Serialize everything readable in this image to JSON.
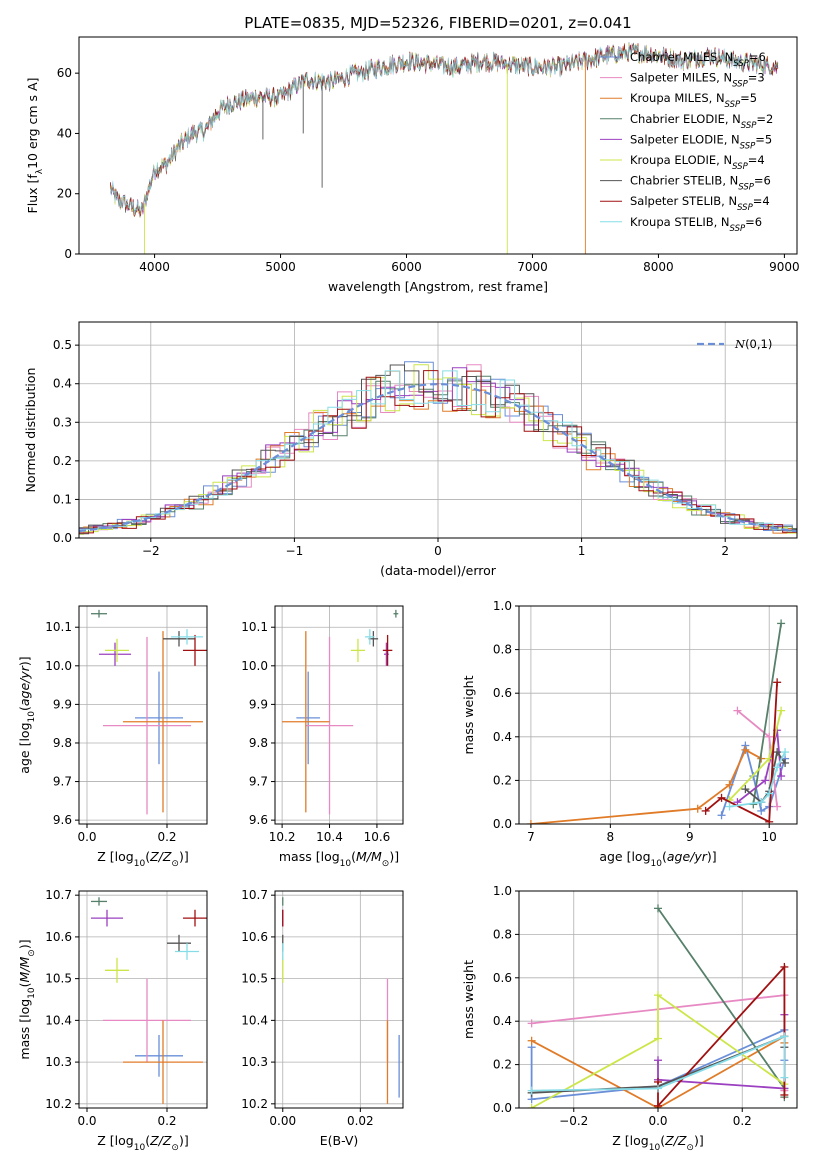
{
  "figure_title": "PLATE=0835, MJD=52326, FIBERID=0201, z=0.041",
  "colors": [
    "#6a8fd8",
    "#e78ac3",
    "#e07b28",
    "#56806a",
    "#9b40c0",
    "#cce64a",
    "#555555",
    "#a01010",
    "#86dde8"
  ],
  "legend_main": [
    "Chabrier MILES, N_SSP=6",
    "Salpeter MILES, N_SSP=3",
    "Kroupa MILES, N_SSP=5",
    "Chabrier ELODIE, N_SSP=2",
    "Salpeter ELODIE, N_SSP=5",
    "Kroupa ELODIE, N_SSP=4",
    "Chabrier STELIB, N_SSP=6",
    "Salpeter STELIB, N_SSP=4",
    "Kroupa STELIB, N_SSP=6"
  ],
  "legend_labels": [
    {
      "pre": "Chabrier MILES, N",
      "post": "=6"
    },
    {
      "pre": "Salpeter MILES, N",
      "post": "=3"
    },
    {
      "pre": "Kroupa MILES, N",
      "post": "=5"
    },
    {
      "pre": "Chabrier ELODIE, N",
      "post": "=2"
    },
    {
      "pre": "Salpeter ELODIE, N",
      "post": "=5"
    },
    {
      "pre": "Kroupa ELODIE, N",
      "post": "=4"
    },
    {
      "pre": "Chabrier STELIB, N",
      "post": "=6"
    },
    {
      "pre": "Salpeter STELIB, N",
      "post": "=4"
    },
    {
      "pre": "Kroupa STELIB, N",
      "post": "=6"
    }
  ],
  "legend_sub": "SSP",
  "legend_residual": "N(0,1)",
  "chart_data": [
    {
      "id": "spectrum",
      "type": "line",
      "xlabel": "wavelength [Angstrom, rest frame]",
      "ylabel": "Flux [f_λ 10^-17 erg cm^-2 s^-1 A^-1]",
      "xlim": [
        3400,
        9100
      ],
      "ylim": [
        0,
        72
      ],
      "xticks": [
        4000,
        5000,
        6000,
        7000,
        8000,
        9000
      ],
      "yticks": [
        0,
        20,
        40,
        60
      ],
      "continuum": {
        "x": [
          3650,
          3700,
          3800,
          3900,
          4000,
          4100,
          4200,
          4300,
          4400,
          4500,
          4600,
          4800,
          5000,
          5200,
          5400,
          5600,
          5800,
          6000,
          6200,
          6400,
          6600,
          6800,
          7000,
          7200,
          7400,
          7600,
          7800,
          8000,
          8200,
          8400,
          8600,
          8800,
          8950
        ],
        "y": [
          22,
          18,
          16,
          14,
          28,
          30,
          36,
          40,
          41,
          47,
          50,
          52,
          52,
          58,
          57,
          60,
          62,
          64,
          63,
          62,
          64,
          63,
          62,
          62,
          64,
          66,
          67,
          66,
          64,
          66,
          64,
          63,
          62
        ]
      },
      "dropouts": [
        {
          "x": 3920,
          "ymin": 0,
          "series": 5
        },
        {
          "x": 5330,
          "ymin": 22,
          "series": 6
        },
        {
          "x": 6800,
          "ymin": 0,
          "series": 5
        },
        {
          "x": 7420,
          "ymin": 0,
          "series": 2
        },
        {
          "x": 4860,
          "ymin": 38,
          "series": 6
        },
        {
          "x": 5180,
          "ymin": 40,
          "series": 6
        }
      ],
      "x_range_data": [
        3650,
        8950
      ]
    },
    {
      "id": "residuals",
      "type": "line",
      "xlabel": "(data-model)/error",
      "ylabel": "Normed distribution",
      "xlim": [
        -2.5,
        2.5
      ],
      "ylim": [
        0,
        0.56
      ],
      "xticks": [
        -2,
        -1,
        0,
        1,
        2
      ],
      "yticks": [
        0.0,
        0.1,
        0.2,
        0.3,
        0.4,
        0.5
      ],
      "gaussian": {
        "mu": 0,
        "sigma": 1,
        "label": "N(0,1)"
      },
      "bin_width": 0.1
    },
    {
      "id": "age_vs_Z",
      "type": "scatter",
      "xlabel": "Z [log10(Z/Z_sun)]",
      "ylabel": "age [log10(age/yr)]",
      "xlim": [
        -0.02,
        0.3
      ],
      "ylim": [
        9.59,
        10.155
      ],
      "xticks": [
        0.0,
        0.2
      ],
      "yticks": [
        9.6,
        9.7,
        9.8,
        9.9,
        10.0,
        10.1
      ],
      "points": [
        {
          "x": 0.18,
          "y": 9.865,
          "xerr": 0.06,
          "yerr": 0.12,
          "series": 0
        },
        {
          "x": 0.15,
          "y": 9.845,
          "xerr": 0.11,
          "yerr": 0.23,
          "series": 1
        },
        {
          "x": 0.19,
          "y": 9.855,
          "xerr": 0.1,
          "yerr": 0.235,
          "series": 2
        },
        {
          "x": 0.03,
          "y": 10.135,
          "xerr": 0.02,
          "yerr": 0.01,
          "series": 3
        },
        {
          "x": 0.07,
          "y": 10.03,
          "xerr": 0.04,
          "yerr": 0.03,
          "series": 4
        },
        {
          "x": 0.075,
          "y": 10.04,
          "xerr": 0.03,
          "yerr": 0.03,
          "series": 5
        },
        {
          "x": 0.23,
          "y": 10.07,
          "xerr": 0.04,
          "yerr": 0.02,
          "series": 6
        },
        {
          "x": 0.27,
          "y": 10.04,
          "xerr": 0.03,
          "yerr": 0.04,
          "series": 7
        },
        {
          "x": 0.25,
          "y": 10.075,
          "xerr": 0.04,
          "yerr": 0.02,
          "series": 8
        }
      ]
    },
    {
      "id": "age_vs_mass",
      "type": "scatter",
      "xlabel": "mass [log10(M/M_sun)]",
      "ylabel": "",
      "xlim": [
        10.17,
        10.71
      ],
      "ylim": [
        9.59,
        10.155
      ],
      "xticks": [
        10.2,
        10.4,
        10.6
      ],
      "yticks": [
        9.6,
        9.7,
        9.8,
        9.9,
        10.0,
        10.1
      ],
      "points": [
        {
          "x": 10.31,
          "y": 9.865,
          "xerr": 0.05,
          "yerr": 0.12,
          "series": 0
        },
        {
          "x": 10.4,
          "y": 9.845,
          "xerr": 0.1,
          "yerr": 0.23,
          "series": 1
        },
        {
          "x": 10.3,
          "y": 9.855,
          "xerr": 0.1,
          "yerr": 0.235,
          "series": 2
        },
        {
          "x": 10.68,
          "y": 10.135,
          "xerr": 0.01,
          "yerr": 0.01,
          "series": 3
        },
        {
          "x": 10.64,
          "y": 10.03,
          "xerr": 0.01,
          "yerr": 0.03,
          "series": 4
        },
        {
          "x": 10.52,
          "y": 10.04,
          "xerr": 0.03,
          "yerr": 0.03,
          "series": 5
        },
        {
          "x": 10.585,
          "y": 10.07,
          "xerr": 0.02,
          "yerr": 0.02,
          "series": 6
        },
        {
          "x": 10.645,
          "y": 10.04,
          "xerr": 0.02,
          "yerr": 0.04,
          "series": 7
        },
        {
          "x": 10.57,
          "y": 10.075,
          "xerr": 0.02,
          "yerr": 0.02,
          "series": 8
        }
      ]
    },
    {
      "id": "weight_vs_age",
      "type": "line",
      "xlabel": "age [log10(age/yr)]",
      "ylabel": "mass weight",
      "xlim": [
        6.85,
        10.35
      ],
      "ylim": [
        0,
        1.0
      ],
      "xticks": [
        7,
        8,
        9,
        10
      ],
      "yticks": [
        0.0,
        0.2,
        0.4,
        0.6,
        0.8,
        1.0
      ],
      "series": [
        {
          "series": 0,
          "x": [
            9.4,
            9.7,
            9.8,
            9.9,
            10.0,
            10.2
          ],
          "y": [
            0.04,
            0.36,
            0.22,
            0.06,
            0.08,
            0.3
          ]
        },
        {
          "series": 1,
          "x": [
            9.6,
            10.0,
            10.1
          ],
          "y": [
            0.52,
            0.4,
            0.08
          ]
        },
        {
          "series": 2,
          "x": [
            7.0,
            9.1,
            9.5,
            9.7,
            9.9
          ],
          "y": [
            0.0,
            0.07,
            0.18,
            0.34,
            0.3
          ]
        },
        {
          "series": 3,
          "x": [
            9.8,
            10.15
          ],
          "y": [
            0.09,
            0.92
          ]
        },
        {
          "series": 4,
          "x": [
            9.6,
            9.95,
            10.1,
            10.15
          ],
          "y": [
            0.1,
            0.2,
            0.43,
            0.22
          ]
        },
        {
          "series": 5,
          "x": [
            9.5,
            10.0,
            10.15
          ],
          "y": [
            0.11,
            0.3,
            0.52
          ]
        },
        {
          "series": 6,
          "x": [
            9.7,
            9.9,
            10.0,
            10.1,
            10.2
          ],
          "y": [
            0.16,
            0.1,
            0.15,
            0.33,
            0.28
          ]
        },
        {
          "series": 7,
          "x": [
            9.2,
            9.4,
            10.0,
            10.1
          ],
          "y": [
            0.06,
            0.12,
            0.01,
            0.65
          ]
        },
        {
          "series": 8,
          "x": [
            9.5,
            9.9,
            10.0,
            10.1,
            10.2
          ],
          "y": [
            0.08,
            0.1,
            0.14,
            0.26,
            0.33
          ]
        }
      ]
    },
    {
      "id": "mass_vs_Z",
      "type": "scatter",
      "xlabel": "Z [log10(Z/Z_sun)]",
      "ylabel": "mass [log10(M/M_sun)]",
      "xlim": [
        -0.02,
        0.3
      ],
      "ylim": [
        10.19,
        10.71
      ],
      "xticks": [
        0.0,
        0.2
      ],
      "yticks": [
        10.2,
        10.3,
        10.4,
        10.5,
        10.6,
        10.7
      ],
      "points": [
        {
          "x": 0.18,
          "y": 10.315,
          "xerr": 0.06,
          "yerr": 0.05,
          "series": 0
        },
        {
          "x": 0.15,
          "y": 10.4,
          "xerr": 0.11,
          "yerr": 0.1,
          "series": 1
        },
        {
          "x": 0.19,
          "y": 10.3,
          "xerr": 0.1,
          "yerr": 0.1,
          "series": 2
        },
        {
          "x": 0.03,
          "y": 10.685,
          "xerr": 0.02,
          "yerr": 0.01,
          "series": 3
        },
        {
          "x": 0.05,
          "y": 10.645,
          "xerr": 0.04,
          "yerr": 0.02,
          "series": 4
        },
        {
          "x": 0.075,
          "y": 10.52,
          "xerr": 0.03,
          "yerr": 0.03,
          "series": 5
        },
        {
          "x": 0.23,
          "y": 10.585,
          "xerr": 0.03,
          "yerr": 0.02,
          "series": 6
        },
        {
          "x": 0.27,
          "y": 10.645,
          "xerr": 0.03,
          "yerr": 0.02,
          "series": 7
        },
        {
          "x": 0.25,
          "y": 10.565,
          "xerr": 0.03,
          "yerr": 0.02,
          "series": 8
        }
      ]
    },
    {
      "id": "mass_vs_ebv",
      "type": "scatter",
      "xlabel": "E(B-V)",
      "ylabel": "",
      "xlim": [
        -0.002,
        0.031
      ],
      "ylim": [
        10.19,
        10.71
      ],
      "xticks": [
        0.0,
        0.02
      ],
      "yticks": [
        10.2,
        10.3,
        10.4,
        10.5,
        10.6,
        10.7
      ],
      "points": [
        {
          "x": 0.03,
          "y": 10.29,
          "xerr": 0,
          "yerr": 0.075,
          "series": 0
        },
        {
          "x": 0.027,
          "y": 10.4,
          "xerr": 0,
          "yerr": 0.1,
          "series": 1
        },
        {
          "x": 0.027,
          "y": 10.3,
          "xerr": 0,
          "yerr": 0.1,
          "series": 2
        },
        {
          "x": 0.0,
          "y": 10.685,
          "xerr": 0,
          "yerr": 0.01,
          "series": 3
        },
        {
          "x": 0.0,
          "y": 10.645,
          "xerr": 0,
          "yerr": 0.02,
          "series": 4
        },
        {
          "x": 0.0,
          "y": 10.52,
          "xerr": 0,
          "yerr": 0.03,
          "series": 5
        },
        {
          "x": 0.0,
          "y": 10.585,
          "xerr": 0,
          "yerr": 0.02,
          "series": 6
        },
        {
          "x": 0.0,
          "y": 10.645,
          "xerr": 0,
          "yerr": 0.02,
          "series": 7
        },
        {
          "x": 0.0,
          "y": 10.565,
          "xerr": 0,
          "yerr": 0.02,
          "series": 8
        }
      ]
    },
    {
      "id": "weight_vs_Z",
      "type": "line",
      "xlabel": "Z [log10(Z/Z_sun)]",
      "ylabel": "mass weight",
      "xlim": [
        -0.33,
        0.33
      ],
      "ylim": [
        0,
        1.0
      ],
      "xticks": [
        -0.2,
        0.0,
        0.2
      ],
      "yticks": [
        0.0,
        0.2,
        0.4,
        0.6,
        0.8,
        1.0
      ],
      "series": [
        {
          "series": 0,
          "x": [
            -0.3,
            -0.3,
            0.0,
            0.3,
            0.3
          ],
          "y": [
            0.28,
            0.04,
            0.1,
            0.36,
            0.22
          ]
        },
        {
          "series": 1,
          "x": [
            -0.3,
            0.3,
            0.3
          ],
          "y": [
            0.39,
            0.52,
            0.08
          ]
        },
        {
          "series": 2,
          "x": [
            -0.3,
            0.0,
            0.3,
            0.3
          ],
          "y": [
            0.31,
            0.0,
            0.33,
            0.3
          ]
        },
        {
          "series": 3,
          "x": [
            0.0,
            0.3,
            0.3
          ],
          "y": [
            0.92,
            0.09,
            0.05
          ]
        },
        {
          "series": 4,
          "x": [
            0.0,
            0.0,
            0.3,
            0.3
          ],
          "y": [
            0.22,
            0.13,
            0.09,
            0.43
          ]
        },
        {
          "series": 5,
          "x": [
            -0.3,
            0.0,
            0.0,
            0.3
          ],
          "y": [
            0.0,
            0.32,
            0.52,
            0.11
          ]
        },
        {
          "series": 6,
          "x": [
            -0.3,
            0.0,
            0.3,
            0.3
          ],
          "y": [
            0.07,
            0.1,
            0.33,
            0.28
          ]
        },
        {
          "series": 7,
          "x": [
            0.0,
            0.0,
            0.3,
            0.3
          ],
          "y": [
            0.12,
            0.01,
            0.65,
            0.06
          ]
        },
        {
          "series": 8,
          "x": [
            -0.3,
            0.0,
            0.3,
            0.3
          ],
          "y": [
            0.08,
            0.09,
            0.33,
            0.14
          ]
        }
      ]
    }
  ]
}
